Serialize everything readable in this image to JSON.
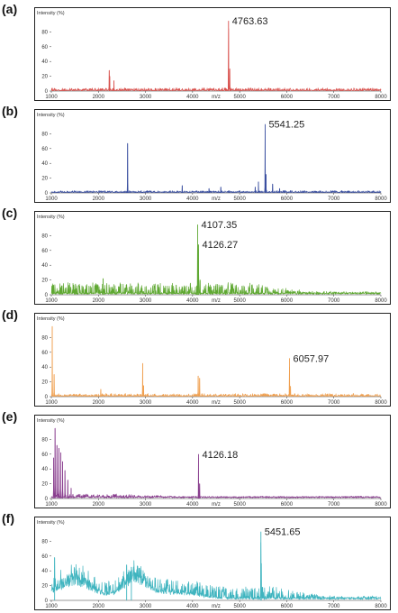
{
  "chart_data": [
    {
      "panel": "(a)",
      "type": "line",
      "color": "#d9534f",
      "ylabel": "Intensity (%)",
      "xlabel": "m/z",
      "xlim": [
        1000,
        8000
      ],
      "ylim": [
        0,
        100
      ],
      "yticks": [
        "0",
        "20",
        "40",
        "60",
        "80"
      ],
      "xticks": [
        "1000",
        "2000",
        "3000",
        "4000",
        "5000",
        "6000",
        "7000",
        "8000"
      ],
      "peaks": [
        {
          "x": 1020,
          "y": 4
        },
        {
          "x": 2230,
          "y": 28
        },
        {
          "x": 2240,
          "y": 20
        },
        {
          "x": 2330,
          "y": 14
        },
        {
          "x": 4700,
          "y": 4
        },
        {
          "x": 4763.63,
          "y": 95
        },
        {
          "x": 4790,
          "y": 30
        },
        {
          "x": 6850,
          "y": 3
        }
      ],
      "noise": 3,
      "baseline": 1,
      "labels": [
        {
          "text": "4763.63",
          "x": 4763.63,
          "y": 95
        }
      ]
    },
    {
      "panel": "(b)",
      "type": "line",
      "color": "#3a4fa0",
      "ylabel": "Intensity (%)",
      "xlabel": "m/z",
      "xlim": [
        1000,
        8000
      ],
      "ylim": [
        0,
        100
      ],
      "yticks": [
        "0",
        "20",
        "40",
        "60",
        "80"
      ],
      "xticks": [
        "1000",
        "2000",
        "3000",
        "4000",
        "5000",
        "6000",
        "7000",
        "8000"
      ],
      "peaks": [
        {
          "x": 2620,
          "y": 67
        },
        {
          "x": 3780,
          "y": 10
        },
        {
          "x": 4350,
          "y": 6
        },
        {
          "x": 4600,
          "y": 8
        },
        {
          "x": 5330,
          "y": 8
        },
        {
          "x": 5400,
          "y": 15
        },
        {
          "x": 5541.25,
          "y": 93
        },
        {
          "x": 5560,
          "y": 25
        },
        {
          "x": 5700,
          "y": 12
        },
        {
          "x": 5850,
          "y": 6
        }
      ],
      "noise": 2,
      "baseline": 1,
      "labels": [
        {
          "text": "5541.25",
          "x": 5541.25,
          "y": 93
        }
      ]
    },
    {
      "panel": "(c)",
      "type": "line",
      "color": "#5fa832",
      "ylabel": "Intensity (%)",
      "xlabel": "m/z",
      "xlim": [
        1000,
        8000
      ],
      "ylim": [
        0,
        100
      ],
      "yticks": [
        "0",
        "20",
        "40",
        "60",
        "80"
      ],
      "xticks": [
        "1000",
        "2000",
        "3000",
        "4000",
        "5000",
        "6000",
        "7000",
        "8000"
      ],
      "peaks": [
        {
          "x": 2100,
          "y": 22
        },
        {
          "x": 4090,
          "y": 12
        },
        {
          "x": 4107.35,
          "y": 95
        },
        {
          "x": 4126.27,
          "y": 68
        },
        {
          "x": 4160,
          "y": 20
        },
        {
          "x": 4700,
          "y": 6
        }
      ],
      "noise": 14,
      "baseline": 2,
      "noise_end": 5200,
      "labels": [
        {
          "text": "4107.35",
          "x": 4107.35,
          "y": 95
        },
        {
          "text": "4126.27",
          "x": 4126.27,
          "y": 68
        }
      ]
    },
    {
      "panel": "(d)",
      "type": "line",
      "color": "#f0a050",
      "ylabel": "Intensity (%)",
      "xlabel": "m/z",
      "xlim": [
        1000,
        8000
      ],
      "ylim": [
        0,
        100
      ],
      "yticks": [
        "0",
        "20",
        "40",
        "60",
        "80"
      ],
      "xticks": [
        "1000",
        "2000",
        "3000",
        "4000",
        "5000",
        "6000",
        "7000",
        "8000"
      ],
      "peaks": [
        {
          "x": 1020,
          "y": 95
        },
        {
          "x": 1060,
          "y": 30
        },
        {
          "x": 2050,
          "y": 10
        },
        {
          "x": 2940,
          "y": 45
        },
        {
          "x": 2960,
          "y": 15
        },
        {
          "x": 4120,
          "y": 28
        },
        {
          "x": 4150,
          "y": 25
        },
        {
          "x": 6057.97,
          "y": 52
        },
        {
          "x": 6080,
          "y": 14
        }
      ],
      "noise": 3,
      "baseline": 1,
      "labels": [
        {
          "text": "6057.97",
          "x": 6057.97,
          "y": 52
        }
      ]
    },
    {
      "panel": "(e)",
      "type": "line",
      "color": "#8a3f8f",
      "ylabel": "Intensity (%)",
      "xlabel": "m/z",
      "xlim": [
        1000,
        8000
      ],
      "ylim": [
        0,
        100
      ],
      "yticks": [
        "0",
        "20",
        "40",
        "60",
        "80"
      ],
      "xticks": [
        "1000",
        "2000",
        "3000",
        "4000",
        "5000",
        "6000",
        "7000",
        "8000"
      ],
      "peaks": [
        {
          "x": 1050,
          "y": 55
        },
        {
          "x": 1080,
          "y": 95
        },
        {
          "x": 1120,
          "y": 72
        },
        {
          "x": 1160,
          "y": 68
        },
        {
          "x": 1200,
          "y": 62
        },
        {
          "x": 1240,
          "y": 50
        },
        {
          "x": 1290,
          "y": 38
        },
        {
          "x": 1350,
          "y": 25
        },
        {
          "x": 1420,
          "y": 14
        },
        {
          "x": 4126.18,
          "y": 60
        },
        {
          "x": 4150,
          "y": 20
        }
      ],
      "noise": 4,
      "baseline": 2,
      "noise_end": 2600,
      "labels": [
        {
          "text": "4126.18",
          "x": 4126.18,
          "y": 60
        }
      ]
    },
    {
      "panel": "(f)",
      "type": "line",
      "color": "#3fb4bf",
      "ylabel": "Intensity (%)",
      "xlabel": "m/z",
      "xlim": [
        1000,
        8000
      ],
      "ylim": [
        0,
        100
      ],
      "yticks": [
        "0",
        "20",
        "40",
        "60",
        "80"
      ],
      "xticks": [
        "1000",
        "2000",
        "3000",
        "4000",
        "5000",
        "6000",
        "7000",
        "8000"
      ],
      "peaks": [
        {
          "x": 1070,
          "y": 58
        },
        {
          "x": 2600,
          "y": 48
        },
        {
          "x": 2700,
          "y": 45
        },
        {
          "x": 5451.65,
          "y": 93
        },
        {
          "x": 5460,
          "y": 50
        }
      ],
      "humps": [
        {
          "center": 1500,
          "width": 500,
          "height": 30
        },
        {
          "center": 2750,
          "width": 350,
          "height": 32
        },
        {
          "center": 3600,
          "width": 700,
          "height": 10
        }
      ],
      "noise": 16,
      "baseline": 3,
      "noise_end": 5600,
      "labels": [
        {
          "text": "5451.65",
          "x": 5451.65,
          "y": 93
        }
      ]
    }
  ]
}
